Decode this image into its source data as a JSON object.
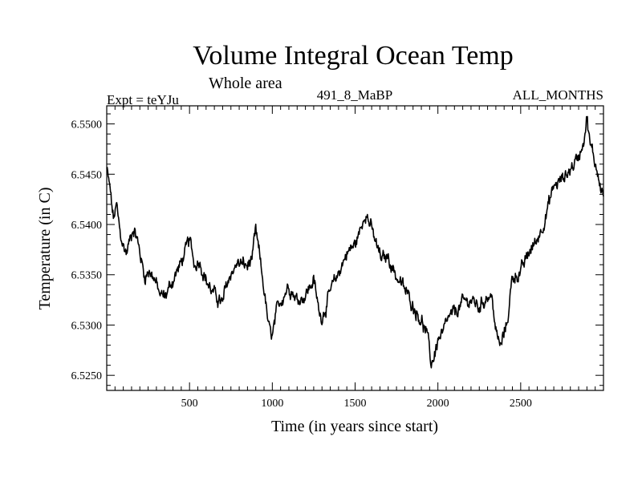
{
  "chart_data": {
    "type": "line",
    "title": "Volume Integral Ocean Temp",
    "subtitle": "Whole area",
    "info_left": "Expt = teYJu",
    "info_center": "491_8_MaBP",
    "info_right": "ALL_MONTHS",
    "xlabel": "Time (in years since start)",
    "ylabel": "Temperature (in C)",
    "xlim": [
      0,
      3000
    ],
    "ylim": [
      6.5235,
      6.5518
    ],
    "xticks": [
      500,
      1000,
      1500,
      2000,
      2500
    ],
    "xtick_labels": [
      "500",
      "1000",
      "1500",
      "2000",
      "2500"
    ],
    "yticks": [
      6.525,
      6.53,
      6.535,
      6.54,
      6.545,
      6.55
    ],
    "ytick_labels": [
      "6.5250",
      "6.5300",
      "6.5350",
      "6.5400",
      "6.5450",
      "6.5500"
    ],
    "grid": false,
    "series": [
      {
        "name": "Volume Integral Ocean Temp",
        "x": [
          0,
          20,
          40,
          60,
          80,
          100,
          120,
          140,
          160,
          180,
          200,
          230,
          260,
          290,
          320,
          350,
          380,
          420,
          450,
          480,
          500,
          530,
          560,
          600,
          640,
          680,
          700,
          720,
          760,
          800,
          850,
          880,
          900,
          920,
          950,
          980,
          1000,
          1030,
          1060,
          1100,
          1150,
          1200,
          1250,
          1280,
          1300,
          1350,
          1400,
          1450,
          1500,
          1540,
          1560,
          1580,
          1600,
          1630,
          1660,
          1700,
          1750,
          1800,
          1850,
          1900,
          1930,
          1950,
          1960,
          1980,
          2000,
          2030,
          2060,
          2100,
          2150,
          2200,
          2250,
          2300,
          2330,
          2350,
          2380,
          2420,
          2450,
          2500,
          2550,
          2600,
          2650,
          2700,
          2750,
          2800,
          2850,
          2880,
          2900,
          2920,
          2950,
          2970,
          3000
        ],
        "values": [
          6.5455,
          6.5435,
          6.5405,
          6.5418,
          6.5392,
          6.5378,
          6.5372,
          6.5385,
          6.5398,
          6.5388,
          6.5372,
          6.5348,
          6.5355,
          6.5345,
          6.533,
          6.5328,
          6.5338,
          6.5352,
          6.5362,
          6.5375,
          6.5385,
          6.536,
          6.5365,
          6.5345,
          6.5332,
          6.5325,
          6.532,
          6.5338,
          6.5355,
          6.5362,
          6.5358,
          6.5368,
          6.5392,
          6.5372,
          6.5335,
          6.5295,
          6.5288,
          6.5315,
          6.5328,
          6.534,
          6.5325,
          6.533,
          6.5345,
          6.5315,
          6.5308,
          6.5332,
          6.5352,
          6.5372,
          6.538,
          6.5398,
          6.5415,
          6.5405,
          6.5395,
          6.5378,
          6.5365,
          6.5368,
          6.5348,
          6.5335,
          6.532,
          6.5305,
          6.5292,
          6.5275,
          6.526,
          6.5272,
          6.5285,
          6.529,
          6.5305,
          6.5312,
          6.5322,
          6.5325,
          6.5318,
          6.533,
          6.5325,
          6.5292,
          6.5278,
          6.5305,
          6.5348,
          6.5352,
          6.5372,
          6.5385,
          6.5408,
          6.5438,
          6.5445,
          6.5455,
          6.5468,
          6.5485,
          6.5508,
          6.5478,
          6.5462,
          6.5448,
          6.5428
        ]
      }
    ]
  }
}
